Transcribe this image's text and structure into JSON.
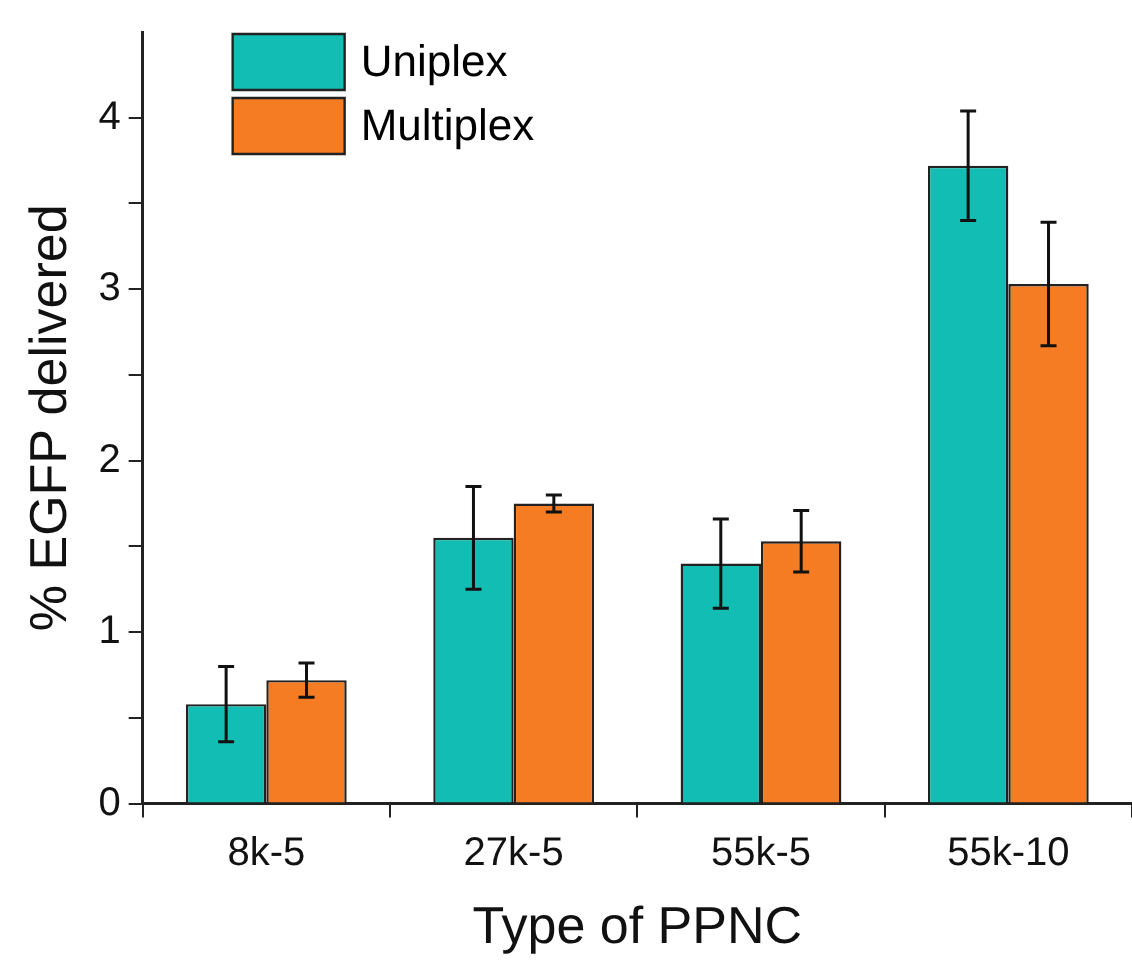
{
  "chart_data": {
    "type": "bar",
    "xlabel": "Type of PPNC",
    "ylabel": "% EGFP delivered",
    "categories": [
      "8k-5",
      "27k-5",
      "55k-5",
      "55k-10"
    ],
    "series": [
      {
        "name": "Uniplex",
        "color": "#12bdb3",
        "values": [
          0.58,
          1.55,
          1.4,
          3.72
        ],
        "errors": [
          0.22,
          0.3,
          0.26,
          0.32
        ]
      },
      {
        "name": "Multiplex",
        "color": "#f57c22",
        "values": [
          0.72,
          1.75,
          1.53,
          3.03
        ],
        "errors": [
          0.1,
          0.05,
          0.18,
          0.36
        ]
      }
    ],
    "ylim": [
      0,
      4.5
    ],
    "yticks": [
      0,
      {
        "value": 0.5,
        "label": null
      },
      1,
      {
        "value": 1.5,
        "label": null
      },
      2,
      {
        "value": 2.5,
        "label": null
      },
      3,
      {
        "value": 3.5,
        "label": null
      },
      4
    ],
    "grid": false,
    "legend": "top left"
  }
}
